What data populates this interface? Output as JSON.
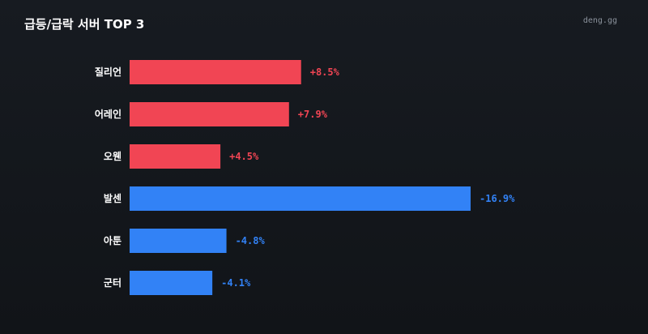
{
  "header": {
    "title": "급등/급락 서버 TOP 3",
    "brand": "deng.gg"
  },
  "colors": {
    "rise": "#f14554",
    "fall": "#3282f6"
  },
  "chart_data": {
    "type": "bar",
    "orientation": "horizontal",
    "categories": [
      "질리언",
      "어레인",
      "오웬",
      "발센",
      "아툰",
      "군터"
    ],
    "values": [
      8.5,
      7.9,
      4.5,
      -16.9,
      -4.8,
      -4.1
    ],
    "value_labels": [
      "+8.5%",
      "+7.9%",
      "+4.5%",
      "-16.9%",
      "-4.8%",
      "-4.1%"
    ],
    "bar_length": "absolute value",
    "grid": false,
    "legend": "none"
  }
}
